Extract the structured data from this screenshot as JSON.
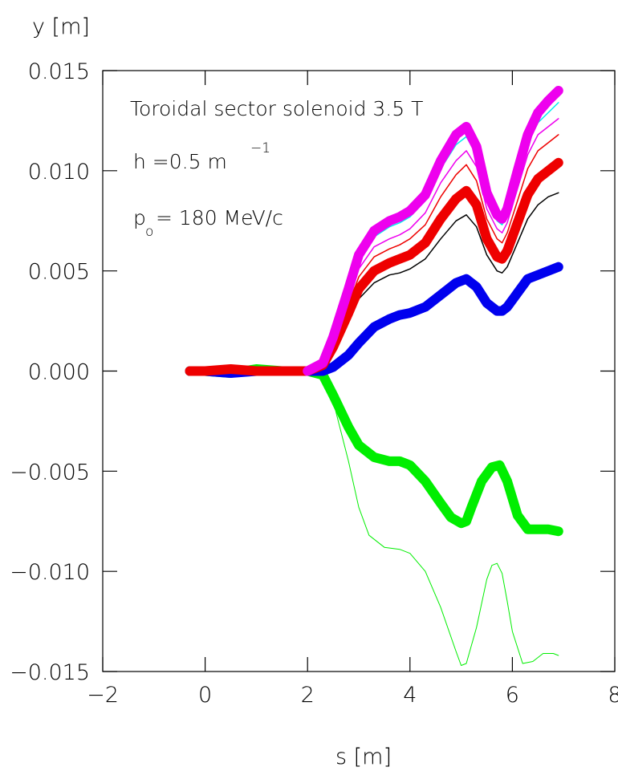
{
  "chart_data": {
    "type": "line",
    "xlabel": "s [m]",
    "ylabel": "y [m]",
    "xlim": [
      -2,
      8
    ],
    "ylim": [
      -0.015,
      0.015
    ],
    "x_ticks": [
      -2,
      0,
      2,
      4,
      6,
      8
    ],
    "x_tick_labels": [
      "−2",
      "0",
      "2",
      "4",
      "6",
      "8"
    ],
    "y_ticks": [
      -0.015,
      -0.01,
      -0.005,
      0.0,
      0.005,
      0.01,
      0.015
    ],
    "y_tick_labels": [
      "−0.015",
      "−0.010",
      "−0.005",
      "0.000",
      "0.005",
      "0.010",
      "0.015"
    ],
    "grid": false,
    "annotations": {
      "line1": "Toroidal sector solenoid  3.5  T",
      "line2_main": "h  =0.5  m",
      "line2_sup": "−1",
      "line3_p": "p",
      "line3_sub": "o",
      "line3_rest": "=  180  MeV/c"
    },
    "series": [
      {
        "color": "#00ee00",
        "width": 1,
        "x": [
          -0.3,
          0.0,
          0.5,
          1.0,
          1.5,
          2.0,
          2.3,
          2.5,
          2.8,
          3.0,
          3.2,
          3.5,
          3.8,
          4.0,
          4.3,
          4.6,
          4.9,
          5.0,
          5.1,
          5.3,
          5.5,
          5.6,
          5.7,
          5.8,
          5.9,
          6.0,
          6.2,
          6.4,
          6.6,
          6.8,
          6.9
        ],
        "y": [
          0.0,
          0.0,
          -0.0001,
          0.0,
          0.0001,
          0.0,
          -0.0003,
          -0.0015,
          -0.0045,
          -0.0068,
          -0.0082,
          -0.0088,
          -0.0089,
          -0.0091,
          -0.01,
          -0.0118,
          -0.014,
          -0.0147,
          -0.0146,
          -0.0128,
          -0.0104,
          -0.0097,
          -0.0096,
          -0.0101,
          -0.0115,
          -0.013,
          -0.0146,
          -0.0145,
          -0.0141,
          -0.0141,
          -0.0142
        ]
      },
      {
        "color": "#00ee00",
        "width": 12,
        "x": [
          -0.3,
          0.0,
          0.5,
          1.0,
          1.5,
          2.0,
          2.3,
          2.5,
          2.8,
          3.0,
          3.3,
          3.6,
          3.8,
          4.0,
          4.3,
          4.6,
          4.8,
          5.0,
          5.1,
          5.2,
          5.4,
          5.6,
          5.75,
          5.9,
          6.1,
          6.3,
          6.5,
          6.7,
          6.9
        ],
        "y": [
          0.0,
          0.0,
          -0.0001,
          0.0001,
          0.0,
          0.0,
          -0.0002,
          -0.0012,
          -0.0028,
          -0.0037,
          -0.0043,
          -0.0045,
          -0.0045,
          -0.0047,
          -0.0055,
          -0.0066,
          -0.0073,
          -0.0076,
          -0.0075,
          -0.0068,
          -0.0055,
          -0.0048,
          -0.0047,
          -0.0055,
          -0.0072,
          -0.0079,
          -0.0079,
          -0.0079,
          -0.008
        ]
      },
      {
        "color": "#0000ee",
        "width": 12,
        "x": [
          -0.3,
          0.0,
          0.5,
          1.0,
          1.5,
          2.0,
          2.3,
          2.5,
          2.8,
          3.0,
          3.3,
          3.6,
          3.8,
          4.0,
          4.3,
          4.6,
          4.9,
          5.1,
          5.3,
          5.5,
          5.7,
          5.8,
          5.9,
          6.1,
          6.3,
          6.5,
          6.7,
          6.9
        ],
        "y": [
          0.0,
          0.0,
          -0.0001,
          0.0,
          0.0,
          0.0,
          0.0,
          0.0002,
          0.0008,
          0.0014,
          0.0022,
          0.0026,
          0.0028,
          0.0029,
          0.0032,
          0.0038,
          0.0044,
          0.0046,
          0.0042,
          0.0034,
          0.003,
          0.003,
          0.0032,
          0.0039,
          0.0046,
          0.0048,
          0.005,
          0.0052
        ]
      },
      {
        "color": "#000000",
        "width": 1.5,
        "x": [
          2.0,
          2.3,
          2.5,
          2.8,
          3.0,
          3.3,
          3.6,
          3.8,
          4.0,
          4.3,
          4.6,
          4.9,
          5.1,
          5.3,
          5.5,
          5.7,
          5.8,
          5.9,
          6.1,
          6.3,
          6.5,
          6.7,
          6.9
        ],
        "y": [
          0.0,
          0.0002,
          0.001,
          0.0025,
          0.0036,
          0.0044,
          0.0048,
          0.0049,
          0.0051,
          0.0056,
          0.0066,
          0.0075,
          0.0078,
          0.0072,
          0.0058,
          0.005,
          0.0049,
          0.0052,
          0.0064,
          0.0076,
          0.0083,
          0.0087,
          0.0089
        ]
      },
      {
        "color": "#ee0000",
        "width": 12,
        "x": [
          -0.3,
          0.0,
          0.5,
          1.0,
          1.5,
          2.0,
          2.3,
          2.5,
          2.8,
          3.0,
          3.3,
          3.6,
          3.8,
          4.0,
          4.3,
          4.6,
          4.9,
          5.1,
          5.3,
          5.5,
          5.7,
          5.8,
          5.9,
          6.1,
          6.3,
          6.5,
          6.7,
          6.9
        ],
        "y": [
          0.0,
          0.0,
          0.0001,
          0.0,
          0.0,
          0.0,
          0.0003,
          0.0012,
          0.0029,
          0.0041,
          0.005,
          0.0054,
          0.0056,
          0.0058,
          0.0064,
          0.0076,
          0.0086,
          0.009,
          0.0083,
          0.0066,
          0.0057,
          0.0056,
          0.006,
          0.0074,
          0.0088,
          0.0096,
          0.01,
          0.0104
        ]
      },
      {
        "color": "#ee0000",
        "width": 1.5,
        "x": [
          2.0,
          2.3,
          2.5,
          2.8,
          3.0,
          3.3,
          3.6,
          3.8,
          4.0,
          4.3,
          4.6,
          4.9,
          5.1,
          5.3,
          5.5,
          5.7,
          5.8,
          5.9,
          6.1,
          6.3,
          6.5,
          6.7,
          6.9
        ],
        "y": [
          0.0,
          0.0003,
          0.0014,
          0.0033,
          0.0047,
          0.0057,
          0.0061,
          0.0063,
          0.0066,
          0.0073,
          0.0087,
          0.0098,
          0.0103,
          0.0095,
          0.0076,
          0.0066,
          0.0064,
          0.0069,
          0.0085,
          0.0101,
          0.011,
          0.0114,
          0.0118
        ]
      },
      {
        "color": "#ee00ee",
        "width": 1.5,
        "x": [
          2.0,
          2.3,
          2.5,
          2.8,
          3.0,
          3.3,
          3.6,
          3.8,
          4.0,
          4.3,
          4.6,
          4.9,
          5.1,
          5.3,
          5.5,
          5.7,
          5.8,
          5.9,
          6.1,
          6.3,
          6.5,
          6.7,
          6.9
        ],
        "y": [
          0.0,
          0.0003,
          0.0015,
          0.0036,
          0.0051,
          0.0062,
          0.0066,
          0.0068,
          0.0071,
          0.0079,
          0.0094,
          0.0105,
          0.011,
          0.0102,
          0.0081,
          0.0071,
          0.0069,
          0.0074,
          0.0091,
          0.0108,
          0.0118,
          0.0122,
          0.0126
        ]
      },
      {
        "color": "#00eeee",
        "width": 1.5,
        "x": [
          2.0,
          2.3,
          2.5,
          2.8,
          3.0,
          3.3,
          3.6,
          3.8,
          4.0,
          4.3,
          4.6,
          4.9,
          5.1,
          5.3,
          5.5,
          5.7,
          5.8,
          5.9,
          6.1,
          6.3,
          6.5,
          6.7,
          6.9
        ],
        "y": [
          0.0,
          0.0004,
          0.0016,
          0.0039,
          0.0055,
          0.0067,
          0.0072,
          0.0074,
          0.0077,
          0.0085,
          0.0101,
          0.0113,
          0.0117,
          0.0108,
          0.0086,
          0.0075,
          0.0073,
          0.0078,
          0.0096,
          0.0114,
          0.0124,
          0.0129,
          0.0134
        ]
      },
      {
        "color": "#ee00ee",
        "width": 12,
        "x": [
          2.0,
          2.3,
          2.5,
          2.8,
          3.0,
          3.3,
          3.6,
          3.8,
          4.0,
          4.3,
          4.6,
          4.9,
          5.1,
          5.3,
          5.5,
          5.7,
          5.8,
          5.9,
          6.1,
          6.3,
          6.5,
          6.7,
          6.9
        ],
        "y": [
          0.0,
          0.0004,
          0.0017,
          0.0041,
          0.0058,
          0.007,
          0.0075,
          0.0077,
          0.008,
          0.0088,
          0.0105,
          0.0118,
          0.0122,
          0.0112,
          0.0089,
          0.0078,
          0.0076,
          0.0081,
          0.01,
          0.0118,
          0.0129,
          0.0135,
          0.014
        ]
      }
    ]
  }
}
